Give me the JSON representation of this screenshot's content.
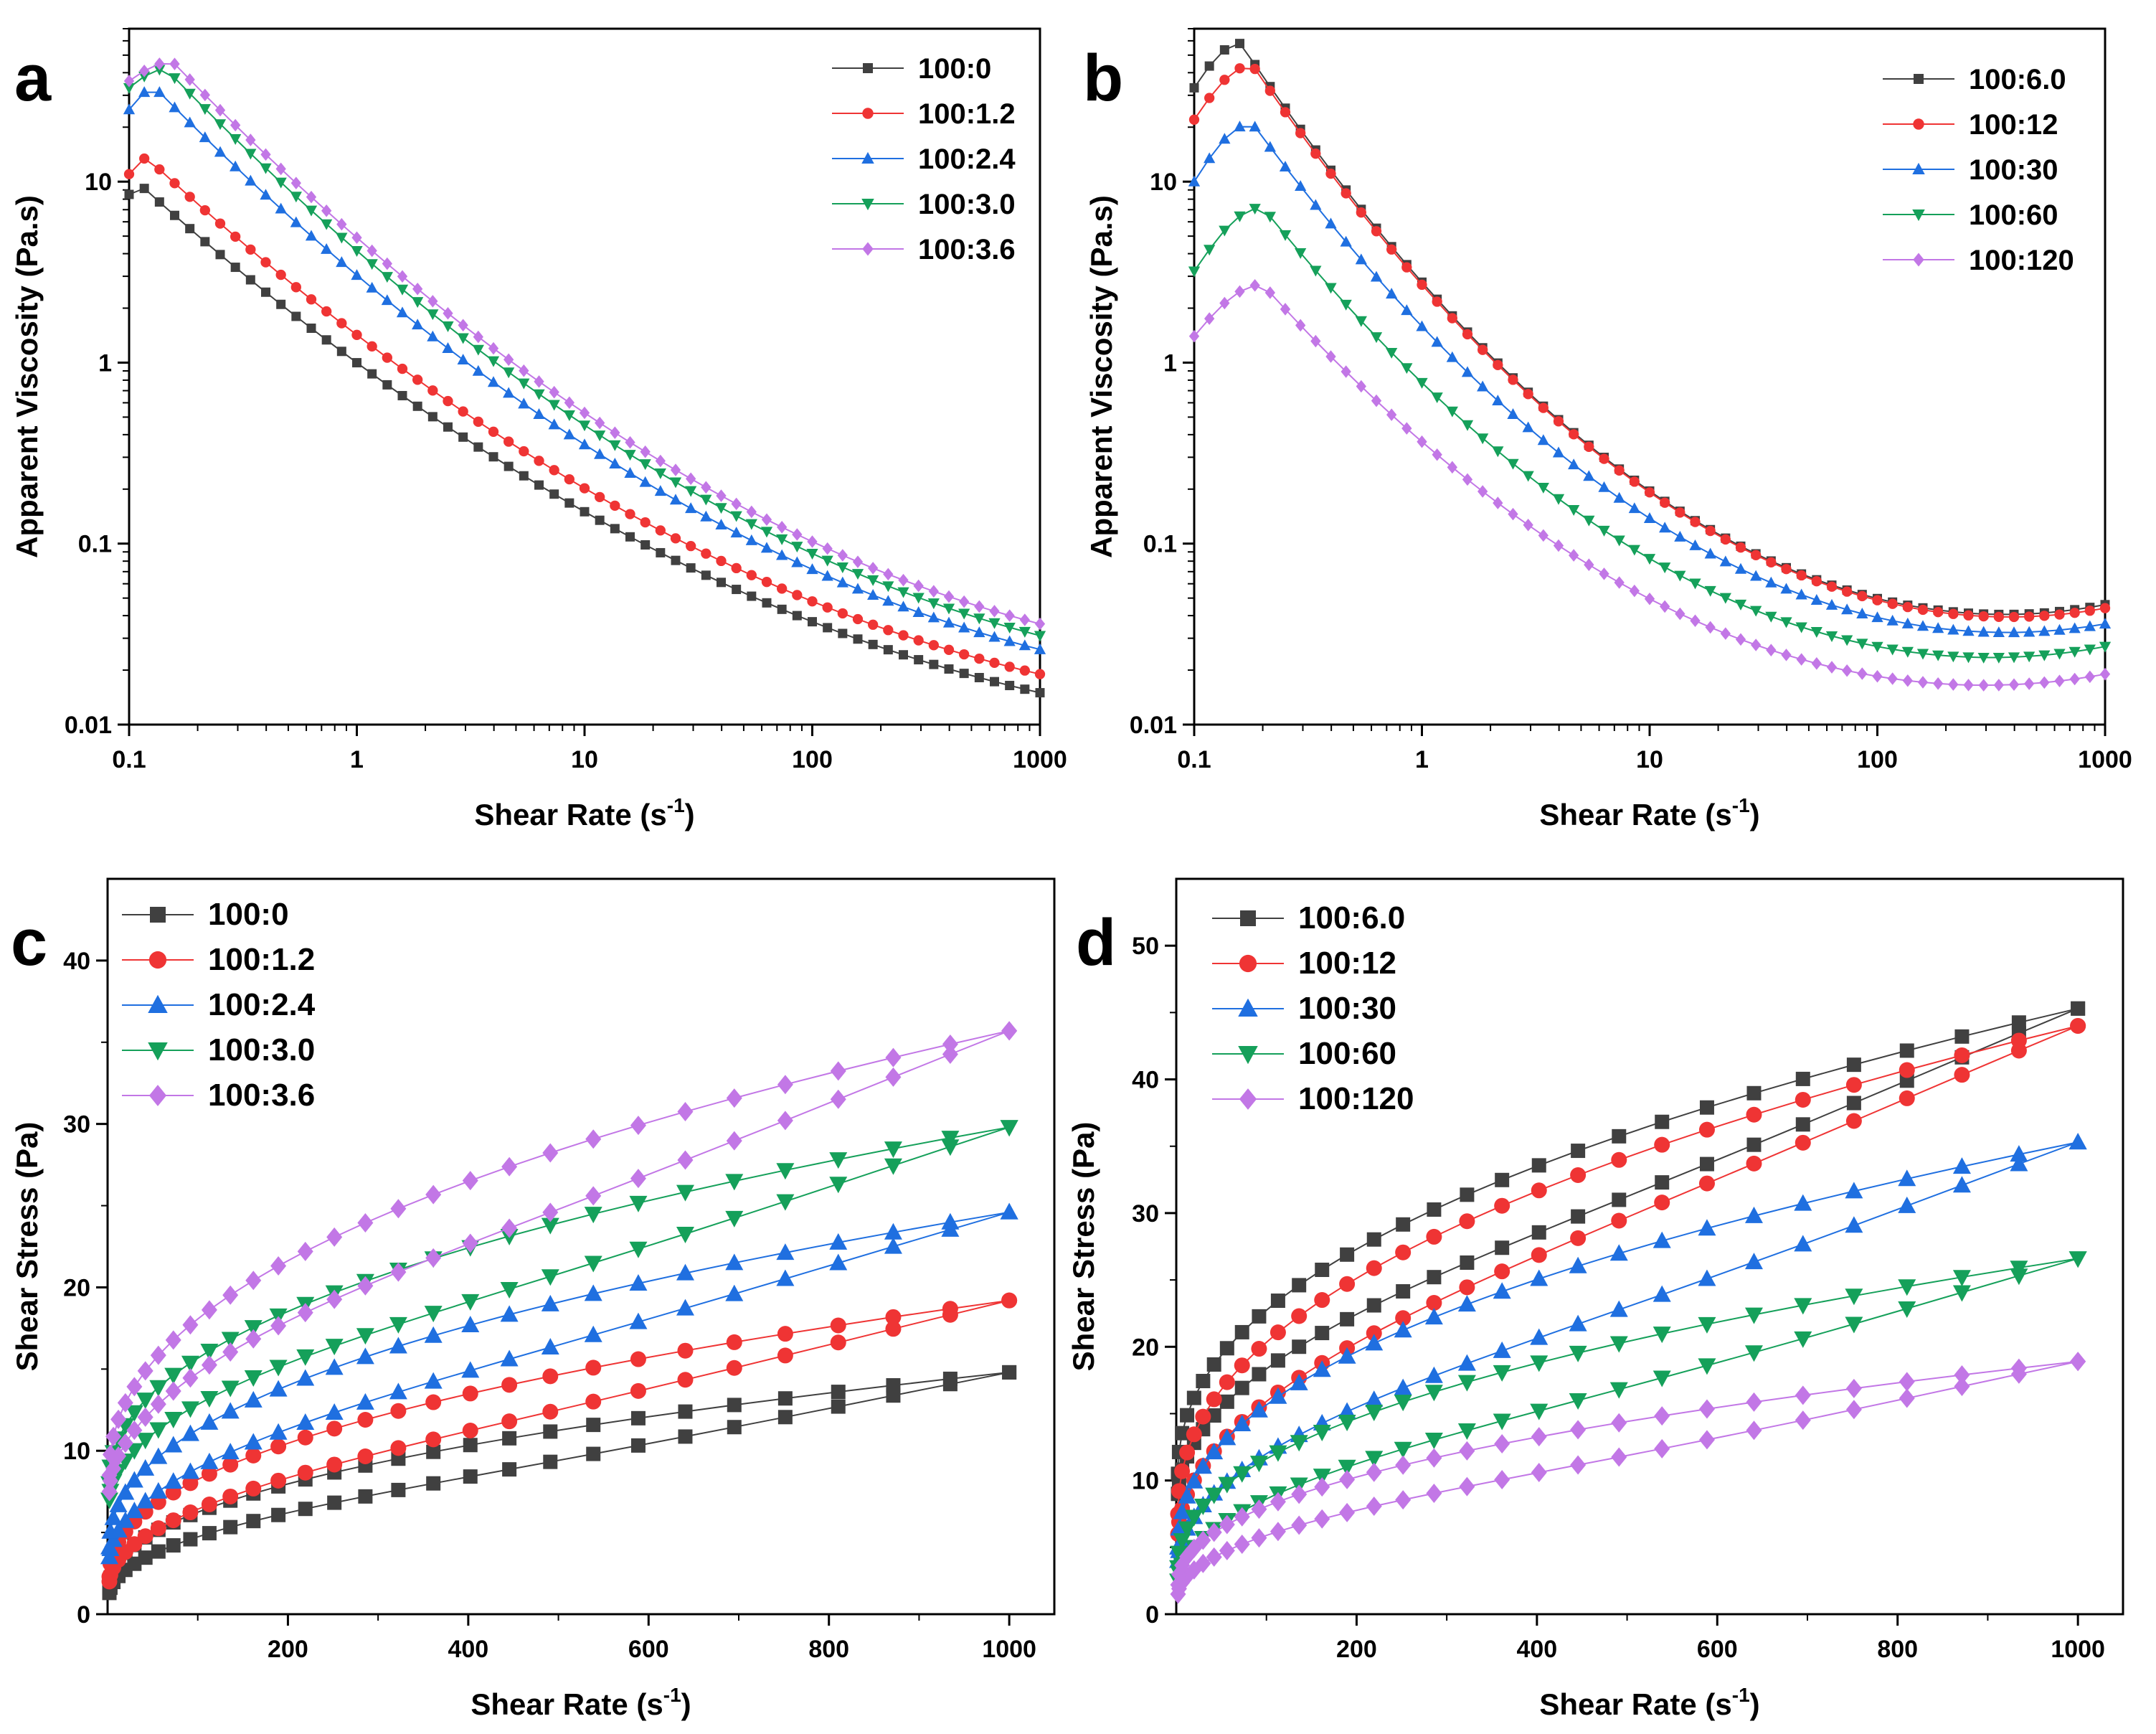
{
  "figure": {
    "colors": {
      "100:0": "#404040",
      "100:1.2": "#ef3434",
      "100:2.4": "#1f6fe0",
      "100:3.0": "#15a05a",
      "100:3.6": "#c277e6",
      "100:6.0": "#404040",
      "100:12": "#ef3434",
      "100:30": "#1f6fe0",
      "100:60": "#15a05a",
      "100:120": "#c277e6"
    },
    "markers": {
      "100:0": "square",
      "100:1.2": "circle",
      "100:2.4": "triangle-up",
      "100:3.0": "triangle-down",
      "100:3.6": "diamond",
      "100:6.0": "square",
      "100:12": "circle",
      "100:30": "triangle-up",
      "100:60": "triangle-down",
      "100:120": "diamond"
    }
  },
  "chart_data": [
    {
      "id": "a",
      "panel_label": "a",
      "type": "line",
      "scale": "log-log",
      "xlabel": "Shear Rate",
      "xlabel_unit": "s",
      "xlabel_exp": "-1",
      "ylabel": "Apparent Viscosity (Pa.s)",
      "xlim": [
        0.1,
        1000
      ],
      "ylim": [
        0.01,
        70
      ],
      "xticks": [
        0.1,
        1,
        10,
        100,
        1000
      ],
      "xtick_labels": [
        "0.1",
        "1",
        "10",
        "100",
        "1000"
      ],
      "yticks": [
        0.01,
        0.1,
        1,
        10
      ],
      "ytick_labels": [
        "0.01",
        "0.1",
        "1",
        "10"
      ],
      "legend_position": "top-right",
      "legend_size": "small",
      "series": [
        {
          "name": "100:0",
          "x0": 0.1,
          "peak_x": 0.11,
          "peak_y": 9.8,
          "end_y": 0.015,
          "start_y": 8.5
        },
        {
          "name": "100:1.2",
          "x0": 0.1,
          "peak_x": 0.12,
          "peak_y": 13.5,
          "end_y": 0.019,
          "start_y": 11.0
        },
        {
          "name": "100:2.4",
          "x0": 0.1,
          "peak_x": 0.13,
          "peak_y": 33,
          "end_y": 0.026,
          "start_y": 25
        },
        {
          "name": "100:3.0",
          "x0": 0.1,
          "peak_x": 0.145,
          "peak_y": 42,
          "end_y": 0.031,
          "start_y": 33
        },
        {
          "name": "100:3.6",
          "x0": 0.1,
          "peak_x": 0.155,
          "peak_y": 46,
          "end_y": 0.036,
          "start_y": 36
        }
      ]
    },
    {
      "id": "b",
      "panel_label": "b",
      "type": "line",
      "scale": "log-log",
      "xlabel": "Shear Rate",
      "xlabel_unit": "s",
      "xlabel_exp": "-1",
      "ylabel": "Apparent Viscosity (Pa.s)",
      "xlim": [
        0.1,
        1000
      ],
      "ylim": [
        0.01,
        70
      ],
      "xticks": [
        0.1,
        1,
        10,
        100,
        1000
      ],
      "xtick_labels": [
        "0.1",
        "1",
        "10",
        "100",
        "1000"
      ],
      "yticks": [
        0.01,
        0.1,
        1,
        10
      ],
      "ytick_labels": [
        "0.01",
        "0.1",
        "1",
        "10"
      ],
      "legend_position": "top-right",
      "legend_size": "small",
      "series": [
        {
          "name": "100:6.0",
          "x0": 0.1,
          "peak_x": 0.16,
          "peak_y": 58,
          "mid_y": 0.16,
          "end_y": 0.046,
          "start_y": 33
        },
        {
          "name": "100:12",
          "x0": 0.1,
          "peak_x": 0.18,
          "peak_y": 44,
          "mid_y": 0.15,
          "end_y": 0.044,
          "start_y": 22
        },
        {
          "name": "100:30",
          "x0": 0.1,
          "peak_x": 0.18,
          "peak_y": 21,
          "mid_y": 0.11,
          "end_y": 0.036,
          "start_y": 10
        },
        {
          "name": "100:60",
          "x0": 0.1,
          "peak_x": 0.2,
          "peak_y": 7.2,
          "mid_y": 0.065,
          "end_y": 0.027,
          "start_y": 3.2
        },
        {
          "name": "100:120",
          "x0": 0.1,
          "peak_x": 0.2,
          "peak_y": 2.7,
          "mid_y": 0.04,
          "end_y": 0.019,
          "start_y": 1.4
        }
      ]
    },
    {
      "id": "c",
      "panel_label": "c",
      "type": "line",
      "scale": "linear",
      "xlabel": "Shear Rate",
      "xlabel_unit": "s",
      "xlabel_exp": "-1",
      "ylabel": "Shear Stress (Pa)",
      "xlim": [
        0,
        1050
      ],
      "ylim": [
        0,
        45
      ],
      "xticks": [
        200,
        400,
        600,
        800,
        1000
      ],
      "xtick_labels": [
        "200",
        "400",
        "600",
        "800",
        "1000"
      ],
      "yticks": [
        0,
        10,
        20,
        30,
        40
      ],
      "ytick_labels": [
        "0",
        "10",
        "20",
        "30",
        "40"
      ],
      "legend_position": "top-left",
      "legend_size": "large",
      "series": [
        {
          "name": "100:0",
          "up_y0": 1.3,
          "up_end": 14.8,
          "down_mid": 6.5,
          "up_mid": 5.8,
          "down_lead": 0.3
        },
        {
          "name": "100:1.2",
          "up_y0": 2.0,
          "up_end": 19.2,
          "down_mid": 9.0,
          "up_mid": 8.3,
          "down_lead": 0.3
        },
        {
          "name": "100:2.4",
          "up_y0": 3.5,
          "up_end": 24.6,
          "down_mid": 14.5,
          "up_mid": 11.5,
          "down_lead": 0.6
        },
        {
          "name": "100:3.0",
          "up_y0": 7.0,
          "up_end": 29.8,
          "down_mid": 19.5,
          "up_mid": 15.0,
          "down_lead": 1.0
        },
        {
          "name": "100:3.6",
          "up_y0": 7.5,
          "up_end": 35.7,
          "down_mid": 22.0,
          "up_mid": 18.0,
          "down_lead": 1.0
        }
      ]
    },
    {
      "id": "d",
      "panel_label": "d",
      "type": "line",
      "scale": "linear",
      "xlabel": "Shear Rate",
      "xlabel_unit": "s",
      "xlabel_exp": "-1",
      "ylabel": "Shear Stress (Pa)",
      "xlim": [
        0,
        1050
      ],
      "ylim": [
        0,
        55
      ],
      "xticks": [
        200,
        400,
        600,
        800,
        1000
      ],
      "xtick_labels": [
        "200",
        "400",
        "600",
        "800",
        "1000"
      ],
      "yticks": [
        0,
        10,
        20,
        30,
        40,
        50
      ],
      "ytick_labels": [
        "0",
        "10",
        "20",
        "30",
        "40",
        "50"
      ],
      "legend_position": "top-left",
      "legend_size": "large",
      "series": [
        {
          "name": "100:6.0",
          "up_y0": 9.0,
          "up_end": 45.3,
          "down_mid": 27.0,
          "up_mid": 22.5,
          "down_lead": 1.5
        },
        {
          "name": "100:12",
          "up_y0": 6.0,
          "up_end": 44.0,
          "down_mid": 25.5,
          "up_mid": 21.5,
          "down_lead": 1.5
        },
        {
          "name": "100:30",
          "up_y0": 4.0,
          "up_end": 35.3,
          "down_mid": 18.5,
          "up_mid": 15.0,
          "down_lead": 1.0
        },
        {
          "name": "100:60",
          "up_y0": 2.5,
          "up_end": 26.6,
          "down_mid": 13.5,
          "up_mid": 10.5,
          "down_lead": 1.0
        },
        {
          "name": "100:120",
          "up_y0": 1.5,
          "up_end": 18.9,
          "down_mid": 8.5,
          "up_mid": 7.0,
          "down_lead": 0.7
        }
      ]
    }
  ]
}
